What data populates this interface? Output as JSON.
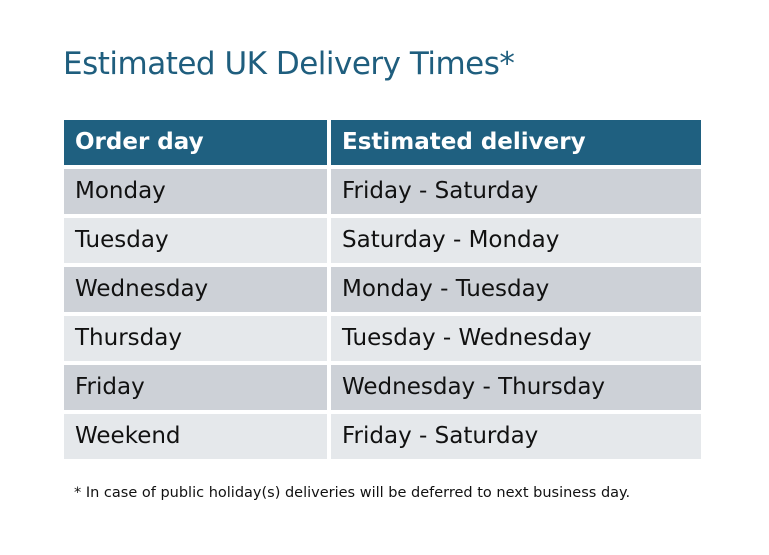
{
  "title": "Estimated UK Delivery Times*",
  "table": {
    "headers": [
      "Order day",
      "Estimated delivery"
    ],
    "rows": [
      [
        "Monday",
        "Friday - Saturday"
      ],
      [
        "Tuesday",
        "Saturday - Monday"
      ],
      [
        "Wednesday",
        "Monday - Tuesday"
      ],
      [
        "Thursday",
        "Tuesday - Wednesday"
      ],
      [
        "Friday",
        "Wednesday - Thursday"
      ],
      [
        "Weekend",
        "Friday - Saturday"
      ]
    ]
  },
  "footnote": "* In case of public holiday(s) deliveries will be deferred to next business day.",
  "colors": {
    "header": "#1f6080",
    "title": "#1f5e7e",
    "row_dark": "#cdd1d7",
    "row_light": "#e5e8eb"
  }
}
